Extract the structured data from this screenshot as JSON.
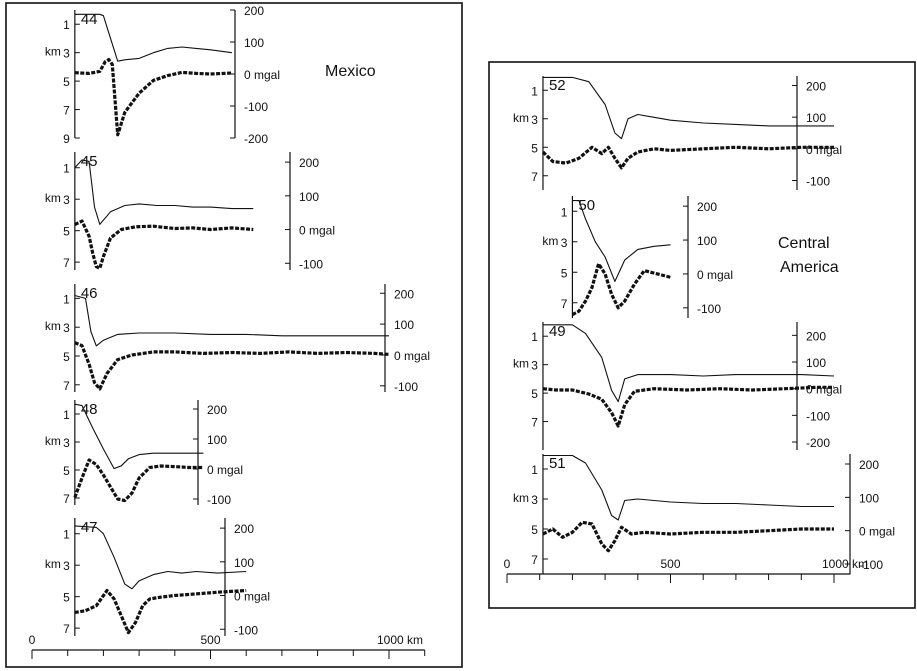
{
  "figure": {
    "left_panel": {
      "region_label": "Mexico",
      "x_axis": {
        "tick_labels": [
          "0",
          "500",
          "1000 km"
        ],
        "tick_values": [
          0,
          500,
          1000
        ],
        "minor_step": 100,
        "range": [
          0,
          1100
        ]
      }
    },
    "right_panel": {
      "region_label_lines": [
        "Central",
        "America"
      ],
      "x_axis": {
        "tick_labels": [
          "0",
          "500",
          "1000 km"
        ],
        "tick_values": [
          0,
          500,
          1000
        ],
        "minor_step": 100,
        "range": [
          0,
          1050
        ]
      }
    }
  },
  "chart_data": [
    {
      "type": "line",
      "panel": "left",
      "profile": "44",
      "x_range_km": [
        120,
        560
      ],
      "depth_axis": {
        "label": "km",
        "ticks": [
          "1",
          "3",
          "5",
          "7",
          "9"
        ],
        "range": [
          0,
          9
        ]
      },
      "gravity_axis": {
        "ticks": [
          "200",
          "100",
          "0 mgal",
          "-100",
          "-200"
        ],
        "range": [
          -200,
          200
        ]
      },
      "series": [
        {
          "role": "bathymetry",
          "x": [
            120,
            190,
            200,
            240,
            260,
            300,
            340,
            380,
            420,
            460,
            500,
            560
          ],
          "y": [
            0.3,
            0.3,
            0.4,
            3.6,
            3.5,
            3.4,
            3.0,
            2.7,
            2.6,
            2.7,
            2.8,
            3.0
          ]
        },
        {
          "role": "free-air gravity",
          "x": [
            120,
            160,
            190,
            205,
            215,
            225,
            240,
            260,
            300,
            340,
            380,
            420,
            460,
            500,
            560
          ],
          "y": [
            4,
            2,
            8,
            38,
            45,
            30,
            -190,
            -120,
            -60,
            -20,
            -5,
            5,
            2,
            0,
            3
          ]
        }
      ]
    },
    {
      "type": "line",
      "panel": "left",
      "profile": "45",
      "x_range_km": [
        120,
        620
      ],
      "depth_axis": {
        "label": "km",
        "ticks": [
          "1",
          "3",
          "5",
          "7"
        ],
        "range": [
          0,
          7.5
        ]
      },
      "gravity_axis": {
        "ticks": [
          "200",
          "100",
          "0 mgal",
          "-100"
        ],
        "range": [
          -120,
          230
        ]
      },
      "series": [
        {
          "role": "bathymetry",
          "x": [
            120,
            140,
            160,
            175,
            190,
            220,
            260,
            300,
            350,
            400,
            450,
            500,
            560,
            620
          ],
          "y": [
            1.0,
            0.5,
            0.6,
            3.5,
            4.6,
            3.8,
            3.4,
            3.3,
            3.4,
            3.4,
            3.5,
            3.5,
            3.6,
            3.6
          ]
        },
        {
          "role": "free-air gravity",
          "x": [
            120,
            140,
            160,
            170,
            180,
            190,
            200,
            220,
            250,
            290,
            340,
            400,
            450,
            500,
            560,
            620
          ],
          "y": [
            15,
            25,
            -20,
            -70,
            -110,
            -115,
            -80,
            -25,
            0,
            8,
            10,
            3,
            5,
            0,
            5,
            0
          ]
        }
      ]
    },
    {
      "type": "line",
      "panel": "left",
      "profile": "46",
      "x_range_km": [
        120,
        1000
      ],
      "depth_axis": {
        "label": "km",
        "ticks": [
          "1",
          "3",
          "5",
          "7"
        ],
        "range": [
          0,
          7.5
        ]
      },
      "gravity_axis": {
        "ticks": [
          "200",
          "100",
          "0 mgal",
          "-100"
        ],
        "range": [
          -120,
          230
        ]
      },
      "series": [
        {
          "role": "bathymetry",
          "x": [
            120,
            150,
            165,
            180,
            200,
            240,
            300,
            400,
            500,
            600,
            700,
            800,
            900,
            1000
          ],
          "y": [
            0.8,
            1.0,
            3.3,
            4.3,
            3.9,
            3.5,
            3.4,
            3.4,
            3.5,
            3.5,
            3.6,
            3.6,
            3.6,
            3.6
          ]
        },
        {
          "role": "free-air gravity",
          "x": [
            120,
            140,
            160,
            175,
            190,
            210,
            240,
            280,
            340,
            400,
            480,
            560,
            640,
            720,
            800,
            880,
            960,
            1000
          ],
          "y": [
            40,
            30,
            -30,
            -90,
            -110,
            -60,
            -15,
            0,
            10,
            10,
            5,
            8,
            5,
            10,
            5,
            8,
            5,
            2
          ]
        }
      ]
    },
    {
      "type": "line",
      "panel": "left",
      "profile": "48",
      "x_range_km": [
        120,
        480
      ],
      "depth_axis": {
        "label": "km",
        "ticks": [
          "1",
          "3",
          "5",
          "7"
        ],
        "range": [
          0,
          7.5
        ]
      },
      "gravity_axis": {
        "ticks": [
          "200",
          "100",
          "0 mgal",
          "-100"
        ],
        "range": [
          -120,
          230
        ]
      },
      "series": [
        {
          "role": "bathymetry",
          "x": [
            120,
            140,
            170,
            200,
            230,
            250,
            270,
            300,
            340,
            380,
            420,
            480
          ],
          "y": [
            0.3,
            0.4,
            2.0,
            3.5,
            4.9,
            4.7,
            4.2,
            3.9,
            3.8,
            3.8,
            3.8,
            3.8
          ]
        },
        {
          "role": "free-air gravity",
          "x": [
            120,
            140,
            160,
            180,
            200,
            220,
            240,
            260,
            280,
            300,
            330,
            360,
            400,
            440,
            480
          ],
          "y": [
            -95,
            -30,
            30,
            15,
            -20,
            -60,
            -100,
            -105,
            -80,
            -30,
            5,
            10,
            8,
            5,
            5
          ]
        }
      ]
    },
    {
      "type": "line",
      "panel": "left",
      "profile": "47",
      "x_range_km": [
        120,
        600
      ],
      "depth_axis": {
        "label": "km",
        "ticks": [
          "1",
          "3",
          "5",
          "7"
        ],
        "range": [
          0,
          7.5
        ]
      },
      "gravity_axis": {
        "ticks": [
          "200",
          "100",
          "0 mgal",
          "-100"
        ],
        "range": [
          -120,
          230
        ]
      },
      "series": [
        {
          "role": "bathymetry",
          "x": [
            120,
            180,
            200,
            230,
            260,
            280,
            300,
            340,
            380,
            420,
            460,
            520,
            600
          ],
          "y": [
            0.5,
            0.6,
            1.0,
            2.5,
            4.2,
            4.5,
            4.0,
            3.6,
            3.4,
            3.5,
            3.4,
            3.5,
            3.4
          ]
        },
        {
          "role": "free-air gravity",
          "x": [
            120,
            150,
            180,
            210,
            230,
            250,
            270,
            290,
            310,
            330,
            360,
            400,
            460,
            520,
            600
          ],
          "y": [
            -50,
            -45,
            -30,
            15,
            -10,
            -60,
            -110,
            -80,
            -30,
            -10,
            -5,
            0,
            5,
            10,
            15
          ]
        }
      ]
    },
    {
      "type": "line",
      "panel": "right",
      "profile": "52",
      "x_range_km": [
        110,
        1000
      ],
      "depth_axis": {
        "label": "km",
        "ticks": [
          "1",
          "3",
          "5",
          "7"
        ],
        "range": [
          0,
          8
        ]
      },
      "gravity_axis": {
        "ticks": [
          "200",
          "100",
          "0 mgal",
          "-100"
        ],
        "range": [
          -130,
          230
        ]
      },
      "series": [
        {
          "role": "bathymetry",
          "x": [
            110,
            200,
            250,
            300,
            330,
            350,
            370,
            400,
            450,
            500,
            600,
            700,
            800,
            900,
            1000
          ],
          "y": [
            0.1,
            0.1,
            0.4,
            2.0,
            4.0,
            4.4,
            3.0,
            2.7,
            2.9,
            3.1,
            3.3,
            3.4,
            3.5,
            3.5,
            3.5
          ]
        },
        {
          "role": "free-air gravity",
          "x": [
            110,
            140,
            180,
            220,
            260,
            290,
            310,
            330,
            350,
            370,
            400,
            450,
            500,
            600,
            700,
            800,
            900,
            1000
          ],
          "y": [
            -10,
            -40,
            -45,
            -30,
            5,
            -15,
            5,
            -30,
            -60,
            -30,
            -10,
            0,
            -5,
            0,
            5,
            0,
            5,
            5
          ]
        }
      ]
    },
    {
      "type": "line",
      "panel": "right",
      "profile": "50",
      "x_range_km": [
        200,
        500
      ],
      "depth_axis": {
        "label": "km",
        "ticks": [
          "1",
          "3",
          "5",
          "7"
        ],
        "range": [
          0,
          8
        ]
      },
      "gravity_axis": {
        "ticks": [
          "200",
          "100",
          "0 mgal",
          "-100"
        ],
        "range": [
          -130,
          230
        ]
      },
      "series": [
        {
          "role": "bathymetry",
          "x": [
            200,
            220,
            240,
            270,
            300,
            330,
            360,
            400,
            450,
            500
          ],
          "y": [
            0.3,
            0.3,
            1.5,
            3.0,
            4.0,
            5.6,
            4.2,
            3.5,
            3.3,
            3.2
          ]
        },
        {
          "role": "free-air gravity",
          "x": [
            200,
            220,
            240,
            260,
            280,
            300,
            320,
            340,
            360,
            390,
            420,
            460,
            500
          ],
          "y": [
            -120,
            -110,
            -80,
            -40,
            30,
            0,
            -60,
            -100,
            -80,
            -30,
            10,
            0,
            -10
          ]
        }
      ]
    },
    {
      "type": "line",
      "panel": "right",
      "profile": "49",
      "x_range_km": [
        110,
        1000
      ],
      "depth_axis": {
        "label": "km",
        "ticks": [
          "1",
          "3",
          "5",
          "7"
        ],
        "range": [
          0,
          9
        ]
      },
      "gravity_axis": {
        "ticks": [
          "200",
          "100",
          "0 mgal",
          "-100",
          "-200"
        ],
        "range": [
          -230,
          250
        ]
      },
      "series": [
        {
          "role": "bathymetry",
          "x": [
            110,
            200,
            240,
            290,
            320,
            340,
            360,
            400,
            500,
            600,
            700,
            800,
            900,
            1000
          ],
          "y": [
            0.2,
            0.2,
            0.8,
            2.5,
            4.8,
            5.6,
            4.0,
            3.7,
            3.7,
            3.8,
            3.7,
            3.7,
            3.7,
            3.8
          ]
        },
        {
          "role": "free-air gravity",
          "x": [
            110,
            150,
            200,
            250,
            290,
            320,
            340,
            360,
            390,
            450,
            550,
            650,
            750,
            850,
            950,
            1000
          ],
          "y": [
            0,
            -5,
            -5,
            -20,
            -40,
            -90,
            -140,
            -60,
            -10,
            0,
            -5,
            0,
            -5,
            0,
            5,
            5
          ]
        }
      ]
    },
    {
      "type": "line",
      "panel": "right",
      "profile": "51",
      "x_range_km": [
        110,
        1000
      ],
      "depth_axis": {
        "label": "km",
        "ticks": [
          "1",
          "3",
          "5",
          "7"
        ],
        "range": [
          0,
          8
        ]
      },
      "gravity_axis": {
        "ticks": [
          "200",
          "100",
          "0 mgal",
          "-100"
        ],
        "range": [
          -130,
          230
        ]
      },
      "series": [
        {
          "role": "bathymetry",
          "x": [
            110,
            200,
            240,
            290,
            320,
            340,
            360,
            400,
            500,
            600,
            700,
            800,
            900,
            1000
          ],
          "y": [
            0.1,
            0.1,
            0.6,
            2.4,
            4.1,
            4.4,
            3.1,
            3.0,
            3.2,
            3.3,
            3.3,
            3.4,
            3.5,
            3.5
          ]
        },
        {
          "role": "free-air gravity",
          "x": [
            110,
            140,
            170,
            200,
            230,
            260,
            290,
            310,
            330,
            350,
            380,
            420,
            500,
            600,
            700,
            800,
            900,
            1000
          ],
          "y": [
            -10,
            5,
            -20,
            -5,
            25,
            20,
            -40,
            -60,
            -30,
            10,
            -10,
            -5,
            -10,
            -5,
            -5,
            0,
            5,
            5
          ]
        }
      ]
    }
  ]
}
